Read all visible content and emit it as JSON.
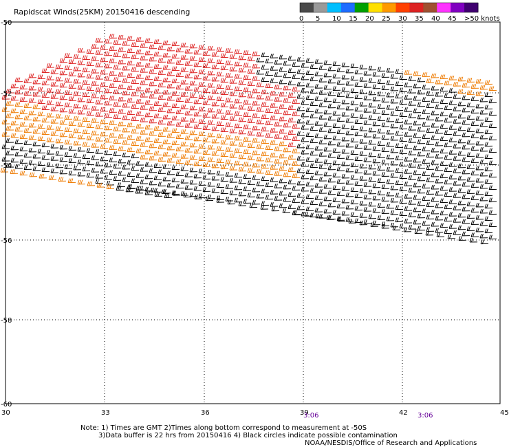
{
  "title": "Rapidscat Winds(25KM) 20150416 descending",
  "legend": {
    "labels": [
      "0",
      "5",
      "10",
      "15",
      "20",
      "25",
      "30",
      "35",
      "40",
      "45",
      ">50 knots"
    ],
    "colors": [
      "#4a4a4a",
      "#9a9a9a",
      "#00bfff",
      "#1e6cff",
      "#00a000",
      "#ffe000",
      "#ff9a00",
      "#ff4000",
      "#dd2222",
      "#a05030",
      "#ff33ff",
      "#8000c0",
      "#400070"
    ]
  },
  "axes": {
    "x_ticks": [
      "30",
      "33",
      "36",
      "39",
      "42",
      "45"
    ],
    "y_ticks": [
      "-50",
      "-52",
      "-54",
      "-56",
      "-58",
      "-60"
    ]
  },
  "pass_times": [
    "3:06",
    "3:06"
  ],
  "notes": {
    "line1": "Note: 1) Times are GMT 2)Times along bottom correspond to measurement at -50S",
    "line2": "3)Data buffer is 22 hrs from 20150416 4) Black circles indicate possible contamination",
    "credit": "NOAA/NESDIS/Office of Research and Applications"
  },
  "colors": {
    "barb_black": "#000000",
    "barb_red": "#dd2222",
    "barb_orange": "#ee7a00",
    "barb_gold": "#e8a000",
    "time_label": "#660099"
  }
}
